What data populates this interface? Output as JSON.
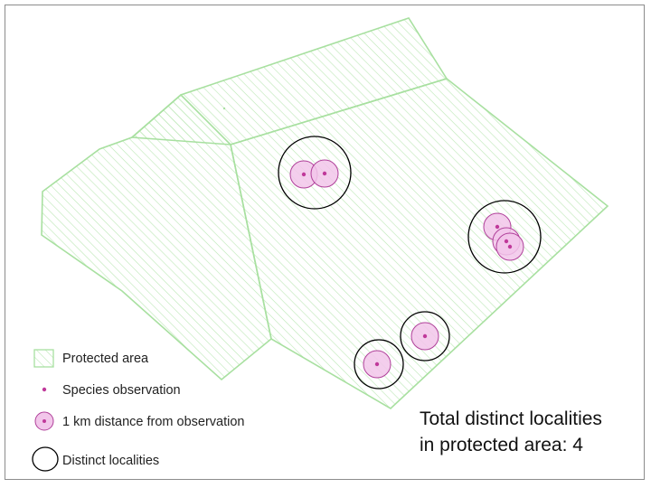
{
  "legend": {
    "protected_area": "Protected area",
    "species_observation": "Species observation",
    "buffer": "1 km distance from observation",
    "distinct_localities": "Distinct localities"
  },
  "summary": {
    "line1": "Total distinct localities",
    "line2": "in protected area: 4"
  },
  "colors": {
    "area_stroke": "#a8e0a0",
    "hatch": "#b9e6b2",
    "observation": "#c0399a",
    "buffer_fill": "#f2c6ea",
    "buffer_stroke": "#b0409a",
    "locality_stroke": "#000000"
  }
}
